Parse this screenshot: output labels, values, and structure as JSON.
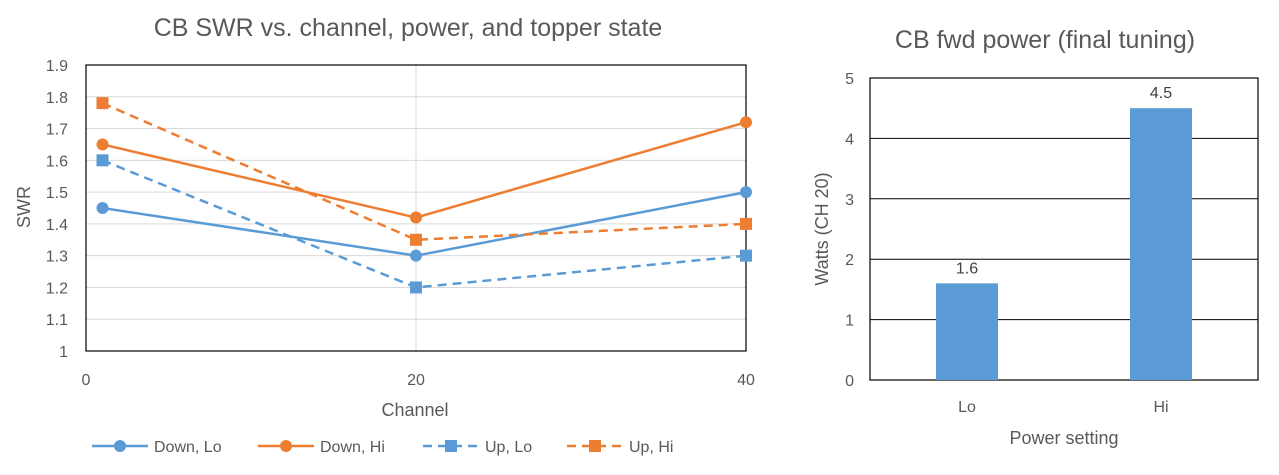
{
  "chart_data": [
    {
      "type": "line",
      "title": "CB SWR vs. channel, power, and topper state",
      "xlabel": "Channel",
      "ylabel": "SWR",
      "xlim": [
        0,
        40
      ],
      "ylim": [
        1,
        1.9
      ],
      "x_ticks": [
        "0",
        "20",
        "40"
      ],
      "y_ticks": [
        "1",
        "1.1",
        "1.2",
        "1.3",
        "1.4",
        "1.5",
        "1.6",
        "1.7",
        "1.8",
        "1.9"
      ],
      "grid": true,
      "legend_position": "bottom",
      "x": [
        1,
        20,
        40
      ],
      "series": [
        {
          "name": "Down, Lo",
          "values": [
            1.45,
            1.3,
            1.5
          ],
          "color": "#5B9BD5",
          "dash": "solid",
          "marker": "circle"
        },
        {
          "name": "Down, Hi",
          "values": [
            1.65,
            1.42,
            1.72
          ],
          "color": "#ED7D31",
          "dash": "solid",
          "marker": "circle"
        },
        {
          "name": "Up, Lo",
          "values": [
            1.6,
            1.2,
            1.3
          ],
          "color": "#5B9BD5",
          "dash": "dashed",
          "marker": "square"
        },
        {
          "name": "Up, Hi",
          "values": [
            1.78,
            1.35,
            1.4
          ],
          "color": "#ED7D31",
          "dash": "dashed",
          "marker": "square"
        }
      ]
    },
    {
      "type": "bar",
      "title": "CB fwd power (final tuning)",
      "xlabel": "Power setting",
      "ylabel": "Watts (CH 20)",
      "ylim": [
        0,
        5
      ],
      "y_ticks": [
        "0",
        "1",
        "2",
        "3",
        "4",
        "5"
      ],
      "grid": true,
      "categories": [
        "Lo",
        "Hi"
      ],
      "values": [
        1.6,
        4.5
      ],
      "value_labels": [
        "1.6",
        "4.5"
      ],
      "color": "#5B9BD5"
    }
  ]
}
